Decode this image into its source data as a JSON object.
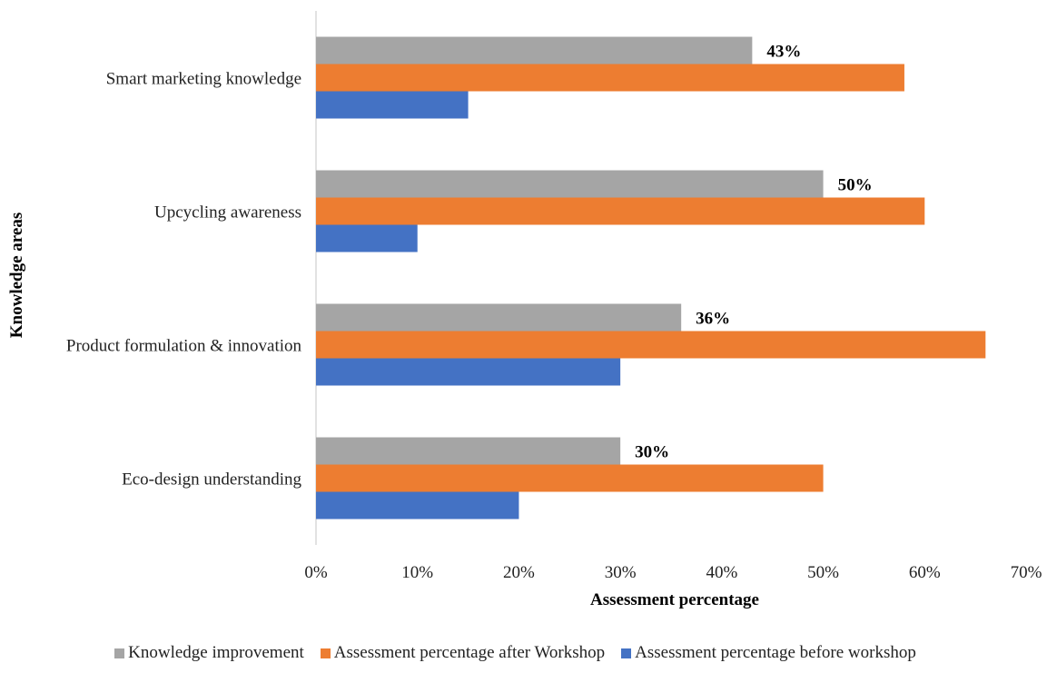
{
  "chart_data": {
    "type": "bar",
    "orientation": "horizontal",
    "categories": [
      "Smart marketing knowledge",
      "Upcycling awareness",
      "Product formulation & innovation",
      "Eco-design understanding"
    ],
    "series": [
      {
        "name": "Knowledge improvement",
        "color": "#a5a5a5",
        "values": [
          43,
          50,
          36,
          30
        ]
      },
      {
        "name": "Assessment percentage after Workshop",
        "color": "#ed7d31",
        "values": [
          58,
          60,
          66,
          50
        ]
      },
      {
        "name": "Assessment percentage before workshop",
        "color": "#4472c4",
        "values": [
          15,
          10,
          30,
          20
        ]
      }
    ],
    "data_labels": [
      "43%",
      "50%",
      "36%",
      "30%"
    ],
    "xlabel": "Assessment percentage",
    "ylabel": "Knowledge areas",
    "xlim": [
      0,
      70
    ],
    "x_ticks": [
      "0%",
      "10%",
      "20%",
      "30%",
      "40%",
      "50%",
      "60%",
      "70%"
    ],
    "x_tick_values": [
      0,
      10,
      20,
      30,
      40,
      50,
      60,
      70
    ],
    "grid": false,
    "legend_position": "bottom"
  }
}
